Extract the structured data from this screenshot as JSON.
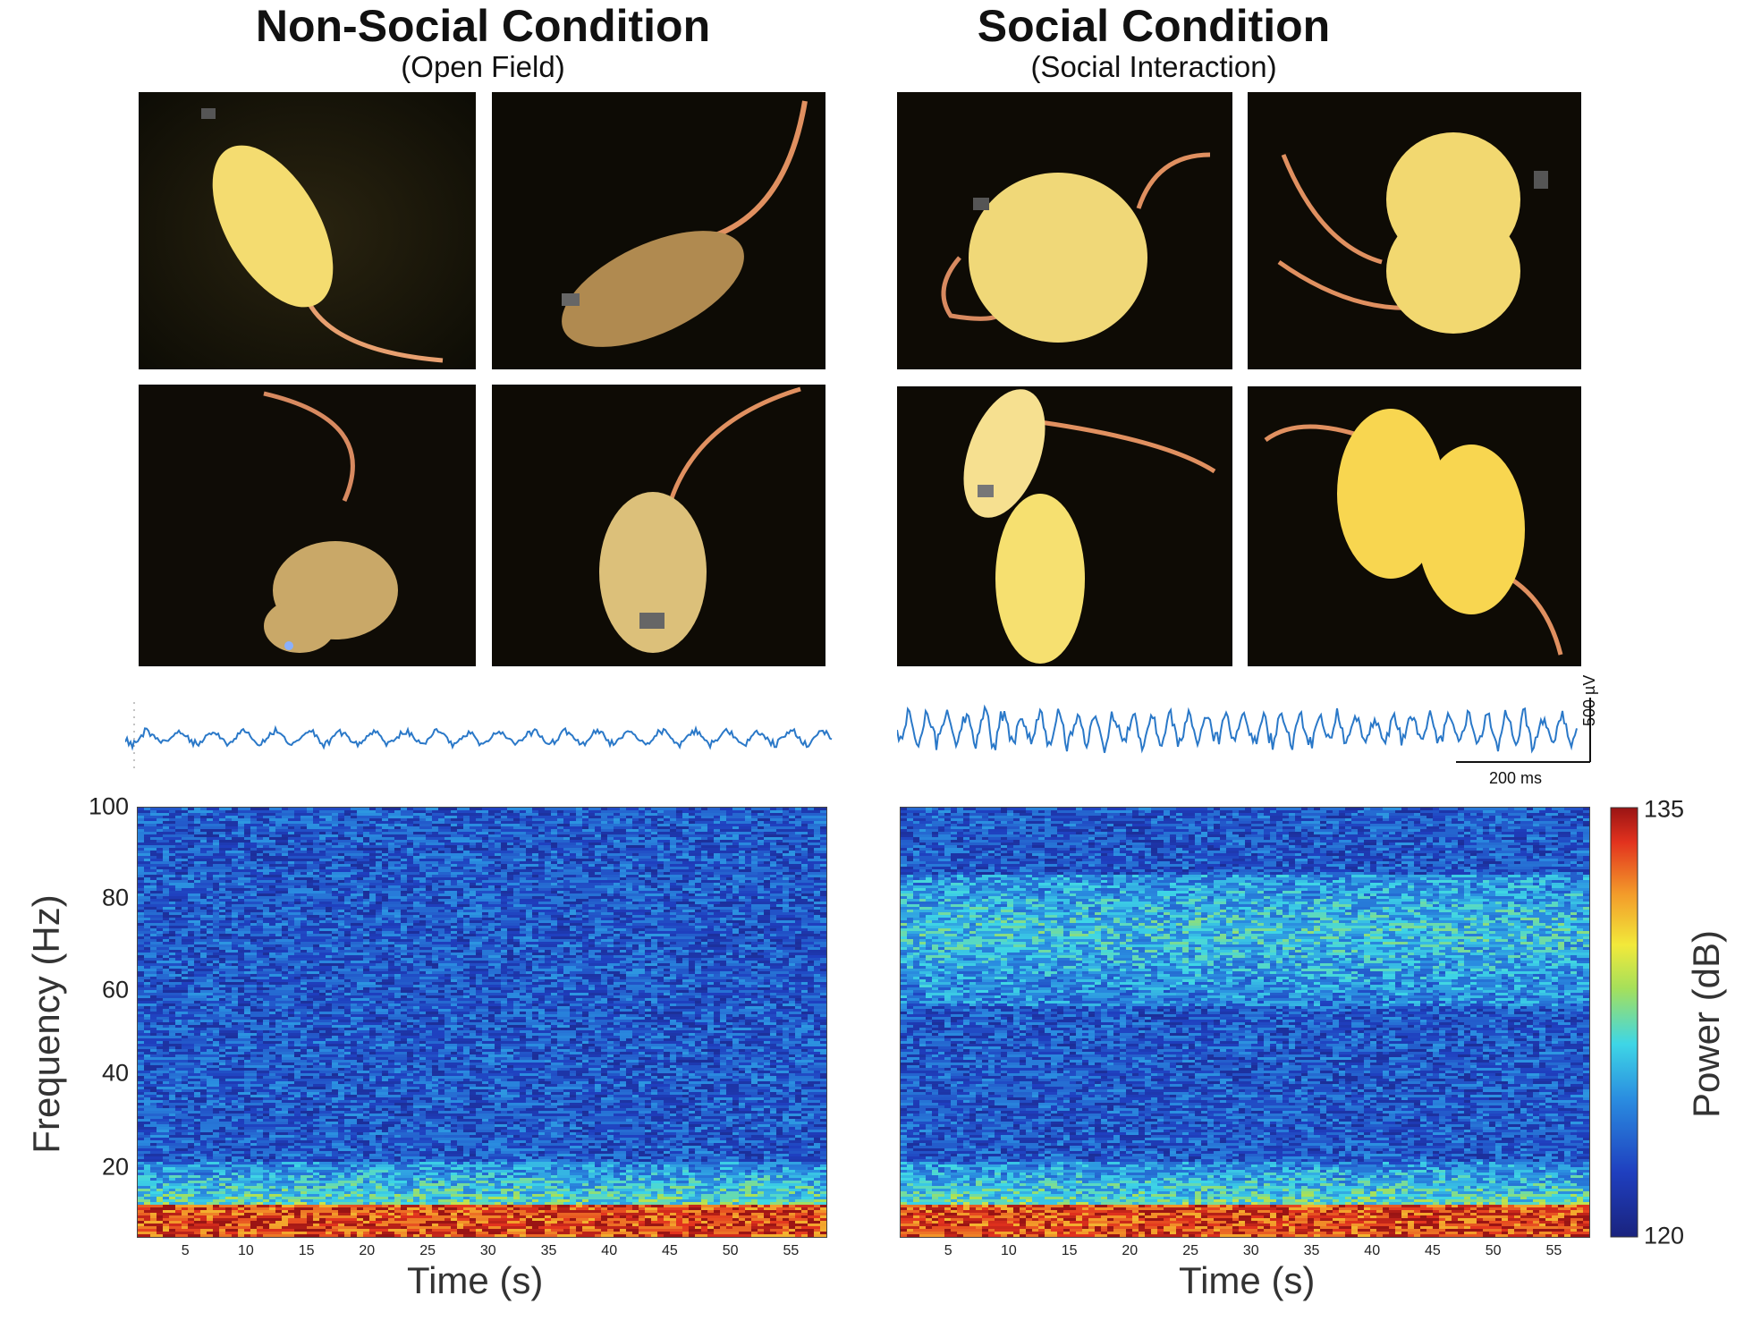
{
  "panels": [
    {
      "title": "Non-Social Condition",
      "subtitle": "(Open Field)"
    },
    {
      "title": "Social Condition",
      "subtitle": "(Social Interaction)"
    }
  ],
  "scale_bar": {
    "voltage": "500 µV",
    "time": "200 ms"
  },
  "colorbar": {
    "label": "Power (dB)",
    "min": "120",
    "max": "135"
  },
  "chart_data": [
    {
      "type": "heatmap",
      "panel": "Non-Social Condition",
      "xlabel": "Time (s)",
      "ylabel": "Frequency (Hz)",
      "xlim": [
        1,
        58
      ],
      "ylim": [
        3,
        100
      ],
      "xticks": [
        "5",
        "10",
        "15",
        "20",
        "25",
        "30",
        "35",
        "40",
        "45",
        "50",
        "55"
      ],
      "yticks": [
        "20",
        "40",
        "60",
        "80",
        "100"
      ],
      "colormap": "jet",
      "clim": [
        120,
        135
      ],
      "bands": [
        {
          "freq_range": [
            3,
            10
          ],
          "level": "high (~133-135 dB)"
        },
        {
          "freq_range": [
            10,
            20
          ],
          "level": "moderate (~127-129 dB)"
        },
        {
          "freq_range": [
            20,
            100
          ],
          "level": "low (~121-124 dB)"
        }
      ]
    },
    {
      "type": "heatmap",
      "panel": "Social Condition",
      "xlabel": "Time (s)",
      "ylabel": "",
      "xlim": [
        1,
        58
      ],
      "ylim": [
        3,
        100
      ],
      "xticks": [
        "5",
        "10",
        "15",
        "20",
        "25",
        "30",
        "35",
        "40",
        "45",
        "50",
        "55"
      ],
      "yticks": [],
      "colormap": "jet",
      "clim": [
        120,
        135
      ],
      "bands": [
        {
          "freq_range": [
            3,
            10
          ],
          "level": "high (~133-135 dB)"
        },
        {
          "freq_range": [
            10,
            20
          ],
          "level": "moderate (~127-129 dB)"
        },
        {
          "freq_range": [
            20,
            55
          ],
          "level": "low (~122-124 dB)"
        },
        {
          "freq_range": [
            55,
            85
          ],
          "level": "elevated gamma (~126-130 dB)"
        },
        {
          "freq_range": [
            85,
            100
          ],
          "level": "low (~122-124 dB)"
        }
      ]
    }
  ],
  "colors": {
    "trace": "#2a78c8",
    "background": "#ffffff"
  }
}
